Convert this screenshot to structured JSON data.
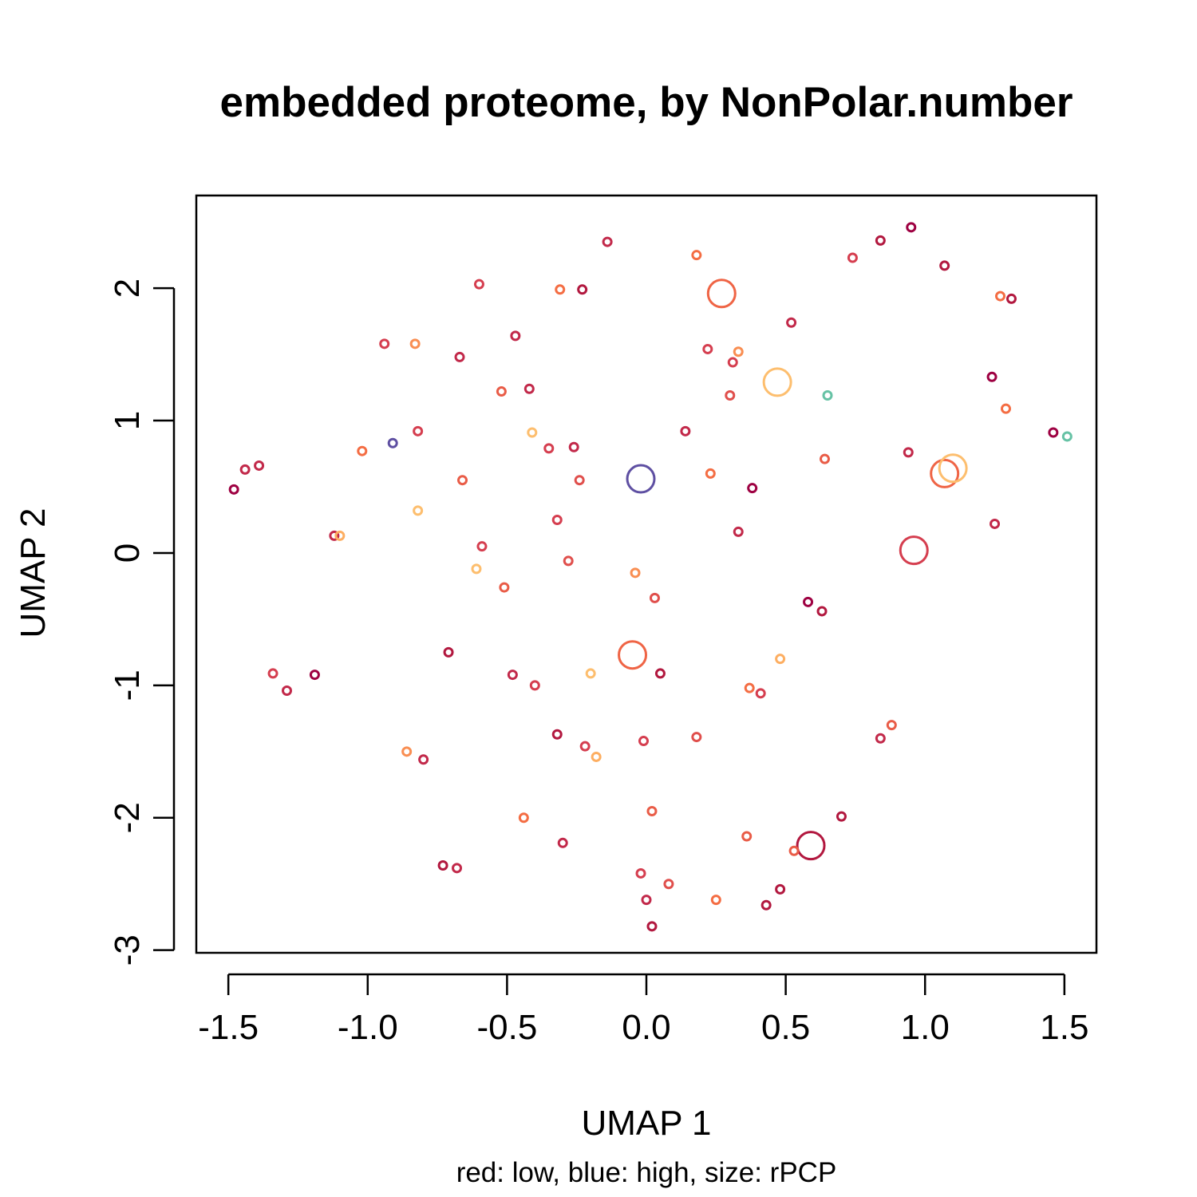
{
  "chart_data": {
    "type": "scatter",
    "title": "embedded proteome, by NonPolar.number",
    "xlabel": "UMAP 1",
    "ylabel": "UMAP 2",
    "subtitle": "red: low, blue: high, size: rPCP",
    "xlim": [
      -1.615,
      1.615
    ],
    "ylim": [
      -3.02,
      2.7
    ],
    "xticks": [
      -1.5,
      -1.0,
      -0.5,
      0.0,
      0.5,
      1.0,
      1.5
    ],
    "xtick_labels": [
      "-1.5",
      "-1.0",
      "-0.5",
      "0.0",
      "0.5",
      "1.0",
      "1.5"
    ],
    "yticks": [
      -3,
      -2,
      -1,
      0,
      1,
      2
    ],
    "ytick_labels": [
      "-3",
      "-2",
      "-1",
      "0",
      "1",
      "2"
    ],
    "grid": false,
    "legend": "none",
    "color_scale": {
      "low": "#9e0142",
      "high": "#5e4fa2"
    },
    "points": [
      {
        "x": -0.14,
        "y": 2.35,
        "color": "#c2294a",
        "size": "small"
      },
      {
        "x": 0.18,
        "y": 2.25,
        "color": "#f46d43",
        "size": "small"
      },
      {
        "x": -0.6,
        "y": 2.03,
        "color": "#d53e4f",
        "size": "small"
      },
      {
        "x": -0.31,
        "y": 1.99,
        "color": "#f46d43",
        "size": "small"
      },
      {
        "x": -0.23,
        "y": 1.99,
        "color": "#b2183f",
        "size": "small"
      },
      {
        "x": 0.27,
        "y": 1.96,
        "color": "#ef6445",
        "size": "large"
      },
      {
        "x": 0.95,
        "y": 2.46,
        "color": "#9e0142",
        "size": "small"
      },
      {
        "x": 0.84,
        "y": 2.36,
        "color": "#b2183f",
        "size": "small"
      },
      {
        "x": 0.74,
        "y": 2.23,
        "color": "#d53e4f",
        "size": "small"
      },
      {
        "x": 1.07,
        "y": 2.17,
        "color": "#b2183f",
        "size": "small"
      },
      {
        "x": 1.27,
        "y": 1.94,
        "color": "#f46d43",
        "size": "small"
      },
      {
        "x": 1.31,
        "y": 1.92,
        "color": "#b2183f",
        "size": "small"
      },
      {
        "x": 0.52,
        "y": 1.74,
        "color": "#c2294a",
        "size": "small"
      },
      {
        "x": -0.47,
        "y": 1.64,
        "color": "#c2294a",
        "size": "small"
      },
      {
        "x": -0.94,
        "y": 1.58,
        "color": "#d53e4f",
        "size": "small"
      },
      {
        "x": -0.83,
        "y": 1.58,
        "color": "#f98e52",
        "size": "small"
      },
      {
        "x": -0.67,
        "y": 1.48,
        "color": "#c2294a",
        "size": "small"
      },
      {
        "x": 0.22,
        "y": 1.54,
        "color": "#d53e4f",
        "size": "small"
      },
      {
        "x": 0.33,
        "y": 1.52,
        "color": "#f98e52",
        "size": "small"
      },
      {
        "x": 0.31,
        "y": 1.44,
        "color": "#d53e4f",
        "size": "small"
      },
      {
        "x": 0.47,
        "y": 1.29,
        "color": "#fdbe6e",
        "size": "large"
      },
      {
        "x": 0.65,
        "y": 1.19,
        "color": "#66c2a5",
        "size": "small"
      },
      {
        "x": 0.3,
        "y": 1.19,
        "color": "#e04f4c",
        "size": "small"
      },
      {
        "x": -0.52,
        "y": 1.22,
        "color": "#e95c47",
        "size": "small"
      },
      {
        "x": -0.42,
        "y": 1.24,
        "color": "#c2294a",
        "size": "small"
      },
      {
        "x": 1.24,
        "y": 1.33,
        "color": "#9e0142",
        "size": "small"
      },
      {
        "x": 1.29,
        "y": 1.09,
        "color": "#f46d43",
        "size": "small"
      },
      {
        "x": 1.46,
        "y": 0.91,
        "color": "#9e0142",
        "size": "small"
      },
      {
        "x": 1.51,
        "y": 0.88,
        "color": "#66c2a5",
        "size": "small"
      },
      {
        "x": 0.14,
        "y": 0.92,
        "color": "#c2294a",
        "size": "small"
      },
      {
        "x": -0.82,
        "y": 0.92,
        "color": "#d53e4f",
        "size": "small"
      },
      {
        "x": -0.91,
        "y": 0.83,
        "color": "#5e4fa2",
        "size": "small"
      },
      {
        "x": -0.41,
        "y": 0.91,
        "color": "#fdbe6e",
        "size": "small"
      },
      {
        "x": -0.35,
        "y": 0.79,
        "color": "#d53e4f",
        "size": "small"
      },
      {
        "x": -0.26,
        "y": 0.8,
        "color": "#c2294a",
        "size": "small"
      },
      {
        "x": -1.02,
        "y": 0.77,
        "color": "#f46d43",
        "size": "small"
      },
      {
        "x": 0.94,
        "y": 0.76,
        "color": "#c2294a",
        "size": "small"
      },
      {
        "x": 0.64,
        "y": 0.71,
        "color": "#e95c47",
        "size": "small"
      },
      {
        "x": 1.07,
        "y": 0.6,
        "color": "#ef6445",
        "size": "large"
      },
      {
        "x": 1.1,
        "y": 0.64,
        "color": "#fdbe6e",
        "size": "large"
      },
      {
        "x": -0.02,
        "y": 0.56,
        "color": "#5e4fa2",
        "size": "large"
      },
      {
        "x": 0.23,
        "y": 0.6,
        "color": "#f46d43",
        "size": "small"
      },
      {
        "x": -0.24,
        "y": 0.55,
        "color": "#e04f4c",
        "size": "small"
      },
      {
        "x": -0.66,
        "y": 0.55,
        "color": "#e95c47",
        "size": "small"
      },
      {
        "x": 0.38,
        "y": 0.49,
        "color": "#9e0142",
        "size": "small"
      },
      {
        "x": -1.39,
        "y": 0.66,
        "color": "#c2294a",
        "size": "small"
      },
      {
        "x": -1.44,
        "y": 0.63,
        "color": "#c2294a",
        "size": "small"
      },
      {
        "x": -1.48,
        "y": 0.48,
        "color": "#9e0142",
        "size": "small"
      },
      {
        "x": -0.82,
        "y": 0.32,
        "color": "#fdbe6e",
        "size": "small"
      },
      {
        "x": -0.32,
        "y": 0.25,
        "color": "#d53e4f",
        "size": "small"
      },
      {
        "x": 1.25,
        "y": 0.22,
        "color": "#c2294a",
        "size": "small"
      },
      {
        "x": 0.33,
        "y": 0.16,
        "color": "#c2294a",
        "size": "small"
      },
      {
        "x": -1.12,
        "y": 0.13,
        "color": "#c2294a",
        "size": "small"
      },
      {
        "x": -1.1,
        "y": 0.13,
        "color": "#fdae61",
        "size": "small"
      },
      {
        "x": -0.59,
        "y": 0.05,
        "color": "#d53e4f",
        "size": "small"
      },
      {
        "x": 0.96,
        "y": 0.02,
        "color": "#d53e4f",
        "size": "large"
      },
      {
        "x": -0.28,
        "y": -0.06,
        "color": "#e04f4c",
        "size": "small"
      },
      {
        "x": -0.61,
        "y": -0.12,
        "color": "#fdbe6e",
        "size": "small"
      },
      {
        "x": -0.04,
        "y": -0.15,
        "color": "#f98e52",
        "size": "small"
      },
      {
        "x": -0.51,
        "y": -0.26,
        "color": "#e95c47",
        "size": "small"
      },
      {
        "x": 0.03,
        "y": -0.34,
        "color": "#e04f4c",
        "size": "small"
      },
      {
        "x": 0.58,
        "y": -0.37,
        "color": "#9e0142",
        "size": "small"
      },
      {
        "x": 0.63,
        "y": -0.44,
        "color": "#b2183f",
        "size": "small"
      },
      {
        "x": -0.71,
        "y": -0.75,
        "color": "#b2183f",
        "size": "small"
      },
      {
        "x": -0.05,
        "y": -0.77,
        "color": "#ef6445",
        "size": "large"
      },
      {
        "x": 0.48,
        "y": -0.8,
        "color": "#fdae61",
        "size": "small"
      },
      {
        "x": -1.34,
        "y": -0.91,
        "color": "#d53e4f",
        "size": "small"
      },
      {
        "x": -1.19,
        "y": -0.92,
        "color": "#9e0142",
        "size": "small"
      },
      {
        "x": -1.29,
        "y": -1.04,
        "color": "#c2294a",
        "size": "small"
      },
      {
        "x": -0.48,
        "y": -0.92,
        "color": "#c2294a",
        "size": "small"
      },
      {
        "x": -0.2,
        "y": -0.91,
        "color": "#fdbe6e",
        "size": "small"
      },
      {
        "x": 0.05,
        "y": -0.91,
        "color": "#b2183f",
        "size": "small"
      },
      {
        "x": -0.4,
        "y": -1.0,
        "color": "#d53e4f",
        "size": "small"
      },
      {
        "x": 0.37,
        "y": -1.02,
        "color": "#f46d43",
        "size": "small"
      },
      {
        "x": 0.41,
        "y": -1.06,
        "color": "#d53e4f",
        "size": "small"
      },
      {
        "x": 0.88,
        "y": -1.3,
        "color": "#e95c47",
        "size": "small"
      },
      {
        "x": 0.84,
        "y": -1.4,
        "color": "#c2294a",
        "size": "small"
      },
      {
        "x": -0.32,
        "y": -1.37,
        "color": "#b2183f",
        "size": "small"
      },
      {
        "x": 0.18,
        "y": -1.39,
        "color": "#e04f4c",
        "size": "small"
      },
      {
        "x": -0.01,
        "y": -1.42,
        "color": "#d53e4f",
        "size": "small"
      },
      {
        "x": -0.22,
        "y": -1.46,
        "color": "#d53e4f",
        "size": "small"
      },
      {
        "x": -0.86,
        "y": -1.5,
        "color": "#f98e52",
        "size": "small"
      },
      {
        "x": -0.18,
        "y": -1.54,
        "color": "#fdae61",
        "size": "small"
      },
      {
        "x": -0.8,
        "y": -1.56,
        "color": "#c2294a",
        "size": "small"
      },
      {
        "x": 0.02,
        "y": -1.95,
        "color": "#e95c47",
        "size": "small"
      },
      {
        "x": 0.7,
        "y": -1.99,
        "color": "#b2183f",
        "size": "small"
      },
      {
        "x": -0.44,
        "y": -2.0,
        "color": "#f46d43",
        "size": "small"
      },
      {
        "x": 0.36,
        "y": -2.14,
        "color": "#e95c47",
        "size": "small"
      },
      {
        "x": -0.3,
        "y": -2.19,
        "color": "#c2294a",
        "size": "small"
      },
      {
        "x": 0.59,
        "y": -2.21,
        "color": "#b2183f",
        "size": "large"
      },
      {
        "x": 0.53,
        "y": -2.25,
        "color": "#e95c47",
        "size": "small"
      },
      {
        "x": -0.73,
        "y": -2.36,
        "color": "#b2183f",
        "size": "small"
      },
      {
        "x": -0.68,
        "y": -2.38,
        "color": "#c2294a",
        "size": "small"
      },
      {
        "x": -0.02,
        "y": -2.42,
        "color": "#d53e4f",
        "size": "small"
      },
      {
        "x": 0.08,
        "y": -2.5,
        "color": "#e04f4c",
        "size": "small"
      },
      {
        "x": 0.48,
        "y": -2.54,
        "color": "#b2183f",
        "size": "small"
      },
      {
        "x": 0.0,
        "y": -2.62,
        "color": "#c2294a",
        "size": "small"
      },
      {
        "x": 0.25,
        "y": -2.62,
        "color": "#f46d43",
        "size": "small"
      },
      {
        "x": 0.43,
        "y": -2.66,
        "color": "#b2183f",
        "size": "small"
      },
      {
        "x": 0.02,
        "y": -2.82,
        "color": "#b2183f",
        "size": "small"
      }
    ]
  }
}
